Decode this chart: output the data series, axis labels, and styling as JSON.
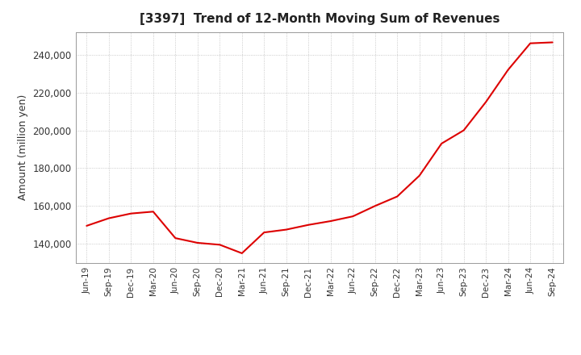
{
  "title": "[3397]  Trend of 12-Month Moving Sum of Revenues",
  "ylabel": "Amount (million yen)",
  "line_color": "#dd0000",
  "background_color": "#ffffff",
  "plot_background_color": "#ffffff",
  "grid_color": "#bbbbbb",
  "ylim": [
    130000,
    252000
  ],
  "yticks": [
    140000,
    160000,
    180000,
    200000,
    220000,
    240000
  ],
  "x_labels": [
    "Jun-19",
    "Sep-19",
    "Dec-19",
    "Mar-20",
    "Jun-20",
    "Sep-20",
    "Dec-20",
    "Mar-21",
    "Jun-21",
    "Sep-21",
    "Dec-21",
    "Mar-22",
    "Jun-22",
    "Sep-22",
    "Dec-22",
    "Mar-23",
    "Jun-23",
    "Sep-23",
    "Dec-23",
    "Mar-24",
    "Jun-24",
    "Sep-24"
  ],
  "data_points": [
    149500,
    153500,
    156000,
    157000,
    143000,
    140500,
    139500,
    135000,
    146000,
    147500,
    150000,
    152000,
    154500,
    160000,
    165000,
    176000,
    193000,
    200000,
    215000,
    232000,
    246000,
    246500
  ]
}
